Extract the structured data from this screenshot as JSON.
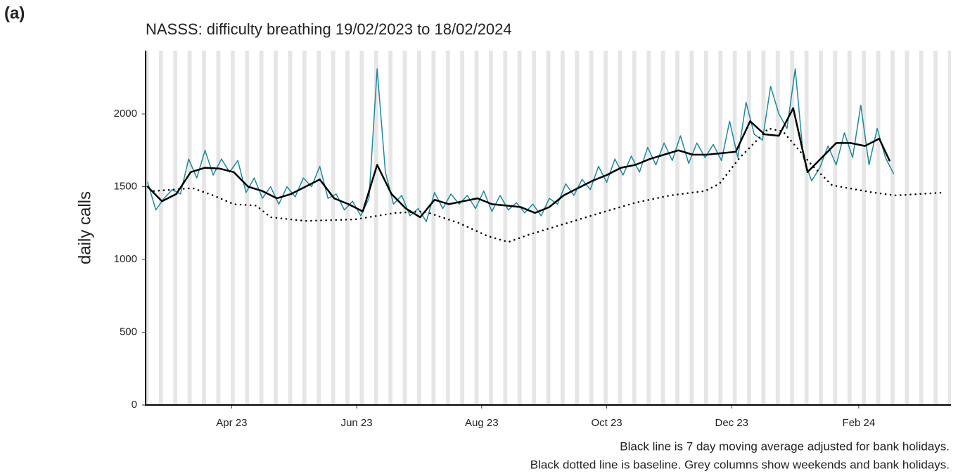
{
  "panel_label": "(a)",
  "chart_data": {
    "type": "line",
    "title": "NASSS: difficulty breathing 19/02/2023 to 18/02/2024",
    "y_label": "daily calls",
    "notes": [
      "Black line is 7 day moving average adjusted for bank holidays.",
      "Black dotted line is baseline. Grey columns show weekends and bank holidays."
    ],
    "xlim": [
      -1,
      392
    ],
    "xticks": [
      {
        "value": 41,
        "label": "Apr 23"
      },
      {
        "value": 102,
        "label": "Jun 23"
      },
      {
        "value": 163,
        "label": "Aug 23"
      },
      {
        "value": 224,
        "label": "Oct 23"
      },
      {
        "value": 285,
        "label": "Dec 23"
      },
      {
        "value": 347,
        "label": "Feb 24"
      }
    ],
    "ylim": [
      0,
      2435
    ],
    "yticks": [
      0,
      500,
      1000,
      1500,
      2000
    ],
    "grid": false,
    "series": [
      {
        "color": "#1b8a9e",
        "style": "solid",
        "width": 1.5,
        "x": [
          0,
          4,
          8,
          12,
          16,
          20,
          24,
          28,
          32,
          36,
          40,
          44,
          48,
          52,
          56,
          60,
          64,
          68,
          72,
          76,
          80,
          84,
          88,
          92,
          96,
          100,
          104,
          108,
          112,
          116,
          120,
          124,
          128,
          132,
          136,
          140,
          144,
          148,
          152,
          156,
          160,
          164,
          168,
          172,
          176,
          180,
          184,
          188,
          192,
          196,
          200,
          204,
          208,
          212,
          216,
          220,
          224,
          228,
          232,
          236,
          240,
          244,
          248,
          252,
          256,
          260,
          264,
          268,
          272,
          276,
          280,
          284,
          288,
          292,
          296,
          300,
          304,
          308,
          312,
          316,
          320,
          324,
          328,
          332,
          336,
          340,
          344,
          348,
          352,
          356,
          360,
          364
        ],
        "values": [
          1530,
          1340,
          1420,
          1480,
          1450,
          1690,
          1560,
          1750,
          1580,
          1690,
          1600,
          1680,
          1460,
          1560,
          1420,
          1500,
          1380,
          1500,
          1430,
          1560,
          1500,
          1640,
          1420,
          1450,
          1340,
          1400,
          1300,
          1420,
          2310,
          1600,
          1380,
          1440,
          1300,
          1350,
          1260,
          1460,
          1350,
          1450,
          1380,
          1440,
          1350,
          1470,
          1330,
          1440,
          1340,
          1390,
          1320,
          1380,
          1300,
          1420,
          1380,
          1520,
          1440,
          1550,
          1480,
          1640,
          1530,
          1690,
          1580,
          1710,
          1600,
          1770,
          1650,
          1800,
          1680,
          1850,
          1660,
          1800,
          1700,
          1790,
          1680,
          1950,
          1700,
          2080,
          1860,
          1820,
          2190,
          2000,
          1900,
          2310,
          1700,
          1540,
          1630,
          1780,
          1650,
          1870,
          1700,
          2060,
          1650,
          1900,
          1700,
          1590
        ]
      },
      {
        "color": "#000000",
        "style": "solid",
        "width": 2.5,
        "x": [
          0,
          7,
          14,
          21,
          28,
          35,
          42,
          49,
          56,
          63,
          70,
          77,
          84,
          91,
          98,
          105,
          112,
          119,
          126,
          133,
          140,
          147,
          154,
          161,
          168,
          175,
          182,
          189,
          196,
          203,
          210,
          217,
          224,
          231,
          238,
          245,
          252,
          259,
          266,
          273,
          280,
          287,
          294,
          301,
          308,
          315,
          322,
          329,
          336,
          343,
          350,
          357,
          362
        ],
        "values": [
          1500,
          1400,
          1450,
          1600,
          1630,
          1625,
          1600,
          1500,
          1470,
          1420,
          1450,
          1500,
          1550,
          1420,
          1380,
          1330,
          1650,
          1450,
          1350,
          1290,
          1410,
          1380,
          1400,
          1420,
          1380,
          1370,
          1360,
          1320,
          1360,
          1440,
          1490,
          1540,
          1580,
          1630,
          1650,
          1690,
          1720,
          1750,
          1720,
          1720,
          1730,
          1740,
          1950,
          1860,
          1850,
          2040,
          1600,
          1700,
          1800,
          1800,
          1780,
          1830,
          1680
        ]
      },
      {
        "color": "#000000",
        "style": "dotted",
        "width": 2.5,
        "x": [
          3,
          22,
          32,
          42,
          53,
          60,
          77,
          101,
          121,
          135,
          152,
          166,
          176,
          186,
          200,
          221,
          238,
          255,
          272,
          279,
          289,
          303,
          310,
          324,
          334,
          354,
          365,
          389
        ],
        "values": [
          1470,
          1490,
          1440,
          1380,
          1370,
          1290,
          1265,
          1275,
          1320,
          1330,
          1250,
          1160,
          1120,
          1170,
          1230,
          1320,
          1390,
          1440,
          1470,
          1520,
          1700,
          1900,
          1880,
          1650,
          1510,
          1460,
          1440,
          1460
        ]
      }
    ]
  }
}
